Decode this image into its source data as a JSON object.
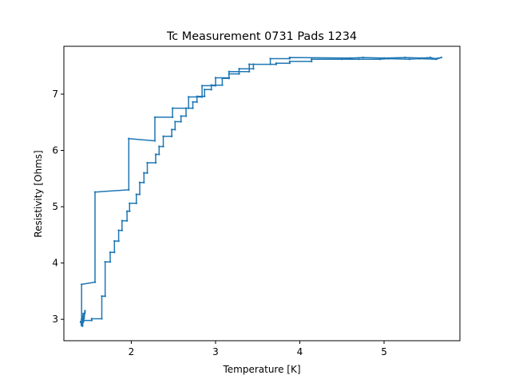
{
  "chart_data": {
    "type": "line",
    "title": "Tc Measurement 0731 Pads 1234",
    "xlabel": "Temperature [K]",
    "ylabel": "Resistivity [Ohms]",
    "xlim": [
      1.2,
      5.9
    ],
    "ylim": [
      2.62,
      7.85
    ],
    "xticks": [
      2,
      3,
      4,
      5
    ],
    "yticks": [
      3,
      4,
      5,
      6,
      7
    ],
    "grid": false,
    "legend": "none",
    "series": [
      {
        "color": "#1f77b4",
        "marker": "small-dot",
        "x": [
          1.41,
          1.4,
          1.44,
          1.42,
          1.45,
          1.42,
          1.43,
          1.41,
          1.45,
          1.43,
          1.43,
          1.43,
          1.44,
          1.41,
          1.41,
          1.57,
          1.57,
          1.97,
          1.97,
          2.28,
          2.28,
          2.49,
          2.49,
          2.68,
          2.68,
          2.84,
          2.84,
          3.0,
          3.0,
          3.16,
          3.16,
          3.4,
          3.4,
          3.65,
          3.65,
          3.88,
          3.88,
          4.6,
          4.75,
          5.0,
          5.25,
          5.45,
          5.55,
          5.6,
          5.68,
          5.62,
          5.42,
          5.3,
          5.05,
          4.95,
          4.7,
          4.5,
          4.14,
          4.14,
          3.88,
          3.88,
          3.72,
          3.72,
          3.45,
          3.45,
          3.28,
          3.28,
          3.16,
          3.16,
          3.08,
          3.08,
          2.95,
          2.95,
          2.87,
          2.87,
          2.78,
          2.78,
          2.73,
          2.73,
          2.65,
          2.65,
          2.59,
          2.59,
          2.52,
          2.52,
          2.48,
          2.48,
          2.38,
          2.38,
          2.33,
          2.33,
          2.29,
          2.29,
          2.19,
          2.19,
          2.15,
          2.15,
          2.1,
          2.1,
          2.06,
          2.06,
          1.98,
          1.98,
          1.95,
          1.95,
          1.89,
          1.89,
          1.85,
          1.85,
          1.8,
          1.8,
          1.75,
          1.75,
          1.69,
          1.69,
          1.65,
          1.65,
          1.53,
          1.53,
          1.44,
          1.42,
          1.4
        ],
        "y": [
          2.89,
          2.95,
          3.05,
          2.88,
          3.15,
          2.9,
          3.1,
          2.92,
          3.12,
          2.95,
          3.0,
          3.05,
          3.02,
          3.0,
          3.62,
          3.66,
          5.26,
          5.3,
          6.21,
          6.17,
          6.59,
          6.59,
          6.75,
          6.75,
          6.95,
          6.95,
          7.15,
          7.15,
          7.29,
          7.29,
          7.4,
          7.4,
          7.53,
          7.53,
          7.63,
          7.63,
          7.65,
          7.64,
          7.65,
          7.64,
          7.65,
          7.64,
          7.65,
          7.63,
          7.65,
          7.62,
          7.63,
          7.62,
          7.63,
          7.62,
          7.62,
          7.62,
          7.62,
          7.58,
          7.58,
          7.55,
          7.55,
          7.53,
          7.53,
          7.45,
          7.45,
          7.36,
          7.36,
          7.28,
          7.28,
          7.16,
          7.16,
          7.08,
          7.08,
          6.96,
          6.96,
          6.86,
          6.86,
          6.75,
          6.75,
          6.61,
          6.61,
          6.51,
          6.51,
          6.37,
          6.37,
          6.25,
          6.25,
          6.07,
          6.07,
          5.93,
          5.93,
          5.78,
          5.78,
          5.6,
          5.6,
          5.43,
          5.43,
          5.22,
          5.22,
          5.06,
          5.06,
          4.92,
          4.92,
          4.75,
          4.75,
          4.58,
          4.58,
          4.39,
          4.39,
          4.19,
          4.19,
          4.02,
          4.02,
          3.41,
          3.41,
          3.01,
          3.01,
          2.98,
          2.98,
          2.97,
          2.96
        ]
      }
    ]
  }
}
